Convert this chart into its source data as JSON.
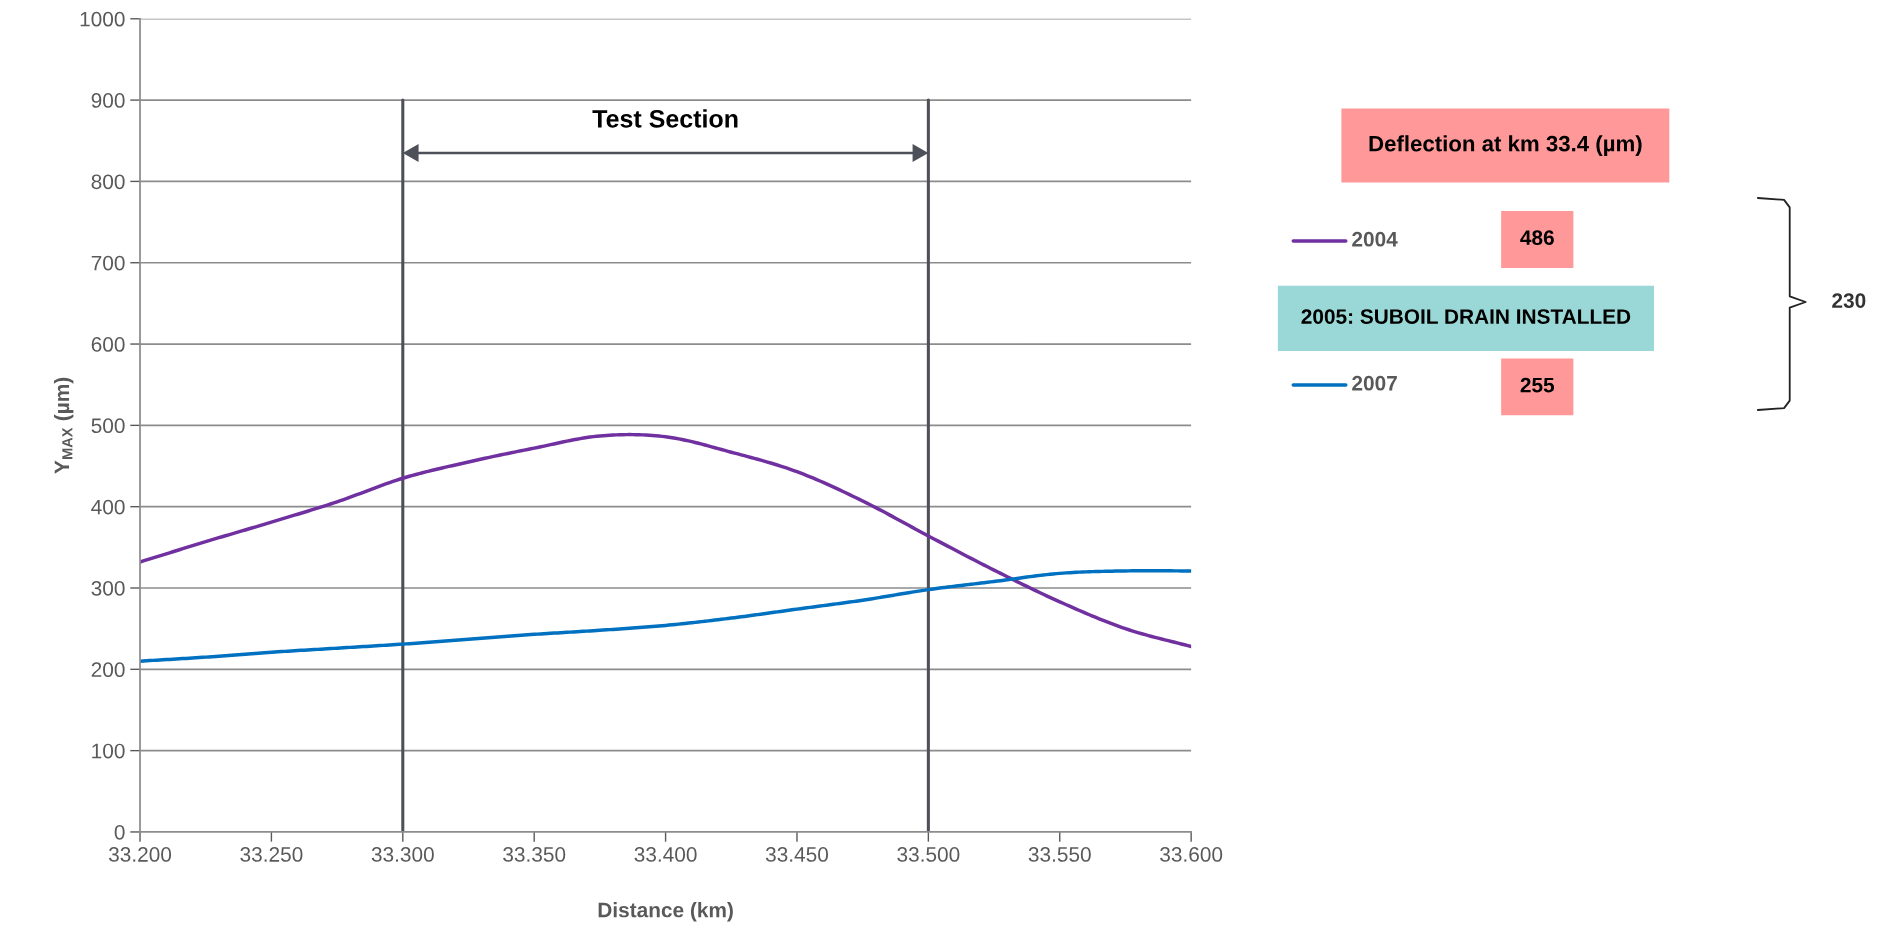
{
  "chart_data": {
    "type": "line",
    "xlabel": "Distance (km)",
    "ylabel": "Y$_{MAX}$ (µm)",
    "xlim": [
      33.2,
      33.6
    ],
    "ylim": [
      0,
      1000
    ],
    "xticks": [
      {
        "value": 33.2,
        "label": "33.200"
      },
      {
        "value": 33.25,
        "label": "33.250"
      },
      {
        "value": 33.3,
        "label": "33.300"
      },
      {
        "value": 33.35,
        "label": "33.350"
      },
      {
        "value": 33.4,
        "label": "33.400"
      },
      {
        "value": 33.45,
        "label": "33.450"
      },
      {
        "value": 33.5,
        "label": "33.500"
      },
      {
        "value": 33.55,
        "label": "33.550"
      },
      {
        "value": 33.6,
        "label": "33.600"
      }
    ],
    "yticks": [
      0,
      100,
      200,
      300,
      400,
      500,
      600,
      700,
      800,
      900,
      1000
    ],
    "grid": "y",
    "legend": "right",
    "line_style": "solid",
    "marker": "none",
    "series": [
      {
        "name": "2004",
        "color": "#7030a0",
        "x": [
          33.2,
          33.225,
          33.25,
          33.275,
          33.3,
          33.325,
          33.35,
          33.375,
          33.4,
          33.425,
          33.45,
          33.475,
          33.5,
          33.525,
          33.55,
          33.575,
          33.6
        ],
        "values": [
          332,
          357,
          381,
          406,
          435,
          455,
          472,
          487,
          486,
          467,
          443,
          407,
          364,
          322,
          283,
          250,
          228
        ]
      },
      {
        "name": "2007",
        "color": "#0070c0",
        "x": [
          33.2,
          33.225,
          33.25,
          33.275,
          33.3,
          33.325,
          33.35,
          33.375,
          33.4,
          33.425,
          33.45,
          33.475,
          33.5,
          33.525,
          33.55,
          33.575,
          33.6
        ],
        "values": [
          210,
          215,
          221,
          226,
          231,
          237,
          243,
          248,
          254,
          263,
          274,
          285,
          298,
          308,
          318,
          321,
          321
        ]
      }
    ],
    "ref_lines": [
      {
        "axis": "x",
        "value": 33.3,
        "label": null,
        "color": "#4d5058"
      },
      {
        "axis": "x",
        "value": 33.5,
        "label": null,
        "color": "#4d5058"
      }
    ],
    "annotations": [
      "Test Section",
      "Deflection at km 33.4 (µm)",
      "486",
      "2005: SUBOIL DRAIN INSTALLED",
      "255",
      "230"
    ]
  }
}
